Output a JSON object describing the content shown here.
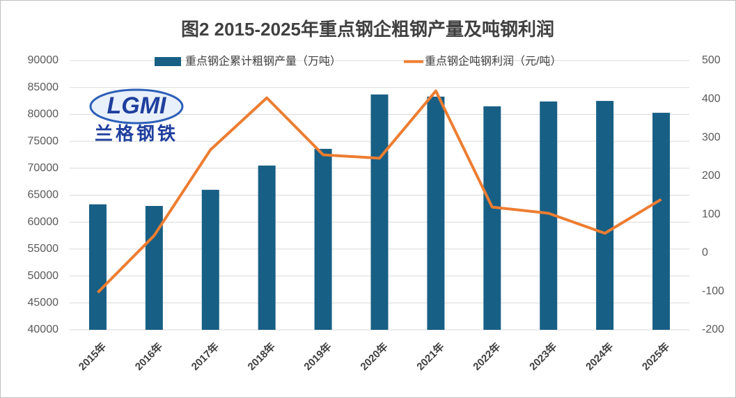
{
  "chart_data": {
    "type": "bar",
    "title": "图2 2015-2025年重点钢企粗钢产量及吨钢利润",
    "categories": [
      "2015年",
      "2016年",
      "2017年",
      "2018年",
      "2019年",
      "2020年",
      "2021年",
      "2022年",
      "2023年",
      "2024年",
      "2025年"
    ],
    "series": [
      {
        "name": "重点钢企累计粗钢产量（万吨）",
        "type": "bar",
        "color": "#185f85",
        "values": [
          63300,
          63000,
          66000,
          70500,
          73600,
          83700,
          83300,
          81500,
          82400,
          82500,
          80300
        ]
      },
      {
        "name": "重点钢企吨钢利润（元/吨）",
        "type": "line",
        "axis": "y2",
        "color": "#ed7d31",
        "values": [
          -103,
          45,
          268,
          403,
          255,
          246,
          421,
          119,
          103,
          51,
          139
        ]
      }
    ],
    "ylim": [
      40000,
      90000
    ],
    "yticks": [
      40000,
      45000,
      50000,
      55000,
      60000,
      65000,
      70000,
      75000,
      80000,
      85000,
      90000
    ],
    "y2lim": [
      -200,
      500
    ],
    "y2ticks": [
      -200,
      -100,
      0,
      100,
      200,
      300,
      400,
      500
    ],
    "grid": true,
    "annotations": [
      "LGMI",
      "兰格钢铁"
    ]
  }
}
